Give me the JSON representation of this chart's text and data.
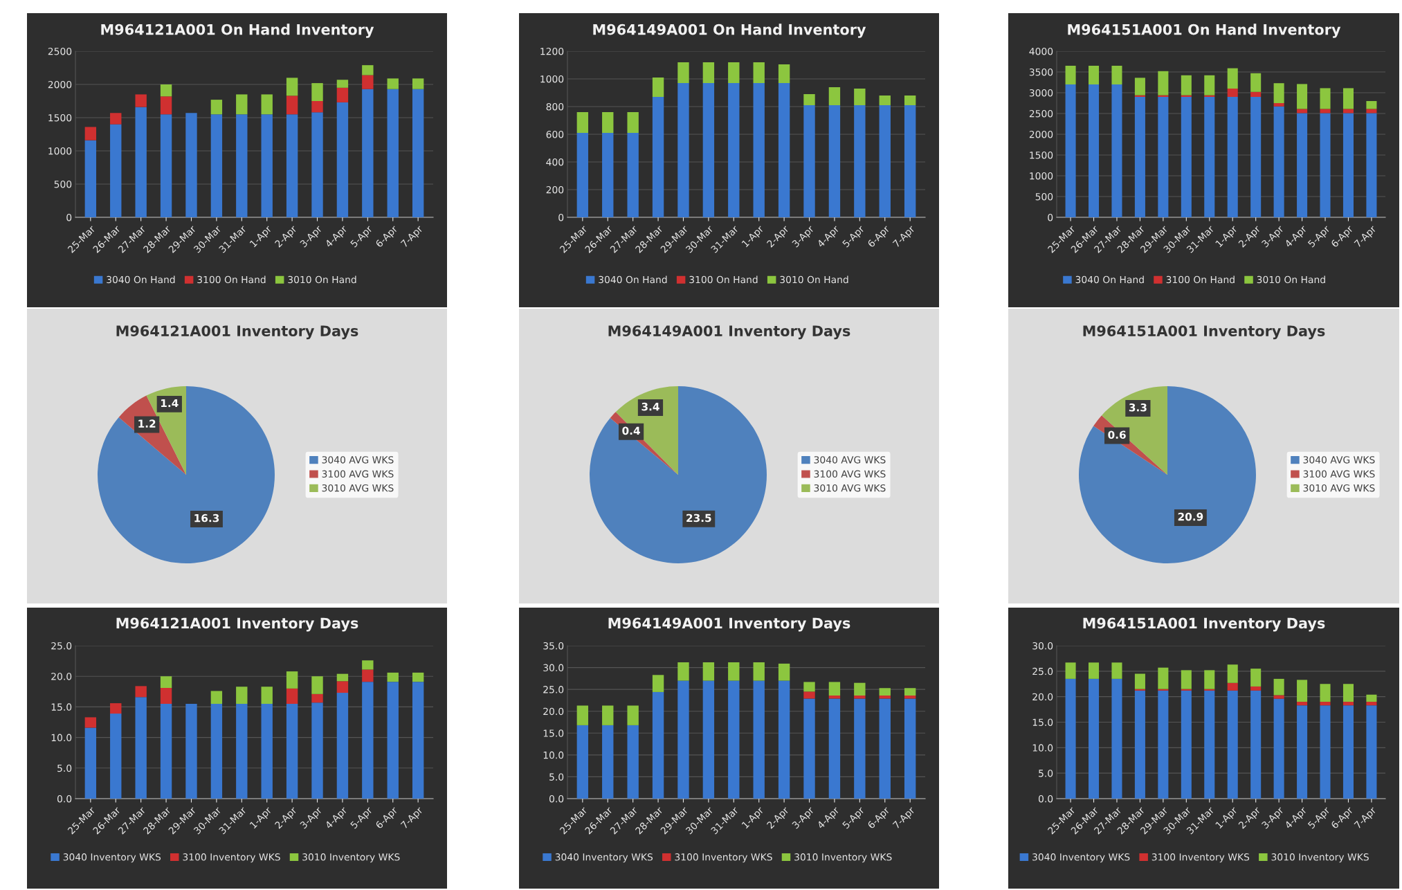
{
  "chart_data": [
    {
      "type": "bar",
      "title": "M964121A001 On Hand Inventory",
      "stacked": true,
      "categories": [
        "25-Mar",
        "26-Mar",
        "27-Mar",
        "28-Mar",
        "29-Mar",
        "30-Mar",
        "31-Mar",
        "1-Apr",
        "2-Apr",
        "3-Apr",
        "4-Apr",
        "5-Apr",
        "6-Apr",
        "7-Apr"
      ],
      "ylim": [
        0,
        2500
      ],
      "yticks": [
        0,
        500,
        1000,
        1500,
        2000,
        2500
      ],
      "grid": "y",
      "legend": "bottom",
      "series": [
        {
          "name": "3040 On Hand",
          "color": "#3a78d0",
          "values": [
            1160,
            1400,
            1660,
            1550,
            1570,
            1550,
            1550,
            1550,
            1550,
            1580,
            1730,
            1930,
            1930,
            1930
          ]
        },
        {
          "name": "3100 On Hand",
          "color": "#d03030",
          "values": [
            200,
            170,
            190,
            270,
            0,
            0,
            0,
            0,
            280,
            170,
            220,
            210,
            0,
            0
          ]
        },
        {
          "name": "3010 On Hand",
          "color": "#8cc63f",
          "values": [
            0,
            0,
            0,
            180,
            0,
            220,
            300,
            300,
            270,
            270,
            120,
            150,
            160,
            160
          ]
        }
      ]
    },
    {
      "type": "bar",
      "title": "M964149A001 On Hand Inventory",
      "stacked": true,
      "categories": [
        "25-Mar",
        "26-Mar",
        "27-Mar",
        "28-Mar",
        "29-Mar",
        "30-Mar",
        "31-Mar",
        "1-Apr",
        "2-Apr",
        "3-Apr",
        "4-Apr",
        "5-Apr",
        "6-Apr",
        "7-Apr"
      ],
      "ylim": [
        0,
        1200
      ],
      "yticks": [
        0,
        200,
        400,
        600,
        800,
        1000,
        1200
      ],
      "grid": "y",
      "legend": "bottom",
      "series": [
        {
          "name": "3040 On Hand",
          "color": "#3a78d0",
          "values": [
            610,
            610,
            610,
            870,
            970,
            970,
            970,
            970,
            970,
            810,
            810,
            810,
            810,
            810
          ]
        },
        {
          "name": "3100 On Hand",
          "color": "#d03030",
          "values": [
            0,
            0,
            0,
            0,
            0,
            0,
            0,
            0,
            0,
            0,
            0,
            0,
            0,
            0
          ]
        },
        {
          "name": "3010 On Hand",
          "color": "#8cc63f",
          "values": [
            150,
            150,
            150,
            140,
            150,
            150,
            150,
            150,
            135,
            80,
            130,
            120,
            70,
            70
          ]
        }
      ]
    },
    {
      "type": "bar",
      "title": "M964151A001 On Hand Inventory",
      "stacked": true,
      "categories": [
        "25-Mar",
        "26-Mar",
        "27-Mar",
        "28-Mar",
        "29-Mar",
        "30-Mar",
        "31-Mar",
        "1-Apr",
        "2-Apr",
        "3-Apr",
        "4-Apr",
        "5-Apr",
        "6-Apr",
        "7-Apr"
      ],
      "ylim": [
        0,
        4000
      ],
      "yticks": [
        0,
        500,
        1000,
        1500,
        2000,
        2500,
        3000,
        3500,
        4000
      ],
      "grid": "y",
      "legend": "bottom",
      "series": [
        {
          "name": "3040 On Hand",
          "color": "#3a78d0",
          "values": [
            3200,
            3200,
            3200,
            2900,
            2900,
            2900,
            2900,
            2900,
            2900,
            2670,
            2510,
            2510,
            2510,
            2510
          ]
        },
        {
          "name": "3100 On Hand",
          "color": "#d03030",
          "values": [
            0,
            0,
            0,
            40,
            40,
            40,
            40,
            200,
            120,
            80,
            100,
            100,
            100,
            100
          ]
        },
        {
          "name": "3010 On Hand",
          "color": "#8cc63f",
          "values": [
            450,
            450,
            450,
            420,
            580,
            480,
            480,
            490,
            450,
            480,
            600,
            500,
            500,
            190
          ]
        }
      ]
    },
    {
      "type": "pie",
      "title": "M964121A001 Inventory Days",
      "categories": [
        "3040 AVG WKS",
        "3100 AVG WKS",
        "3010 AVG WKS"
      ],
      "values": [
        16.3,
        1.2,
        1.4
      ],
      "colors": [
        "#4f81bd",
        "#c0504d",
        "#9bbb59"
      ],
      "data_labels": true,
      "legend": "right"
    },
    {
      "type": "pie",
      "title": "M964149A001 Inventory Days",
      "categories": [
        "3040 AVG WKS",
        "3100 AVG WKS",
        "3010 AVG WKS"
      ],
      "values": [
        23.5,
        0.4,
        3.4
      ],
      "colors": [
        "#4f81bd",
        "#c0504d",
        "#9bbb59"
      ],
      "data_labels": true,
      "legend": "right"
    },
    {
      "type": "pie",
      "title": "M964151A001 Inventory Days",
      "categories": [
        "3040 AVG WKS",
        "3100 AVG WKS",
        "3010 AVG WKS"
      ],
      "values": [
        20.9,
        0.6,
        3.3
      ],
      "colors": [
        "#4f81bd",
        "#c0504d",
        "#9bbb59"
      ],
      "data_labels": true,
      "legend": "right"
    },
    {
      "type": "bar",
      "title": "M964121A001 Inventory Days",
      "stacked": true,
      "categories": [
        "25-Mar",
        "26-Mar",
        "27-Mar",
        "28-Mar",
        "29-Mar",
        "30-Mar",
        "31-Mar",
        "1-Apr",
        "2-Apr",
        "3-Apr",
        "4-Apr",
        "5-Apr",
        "6-Apr",
        "7-Apr"
      ],
      "ylim": [
        0,
        25
      ],
      "yticks": [
        {
          "value": 0,
          "label": "0.0"
        },
        {
          "value": 5,
          "label": "5.0"
        },
        {
          "value": 10,
          "label": "10.0"
        },
        {
          "value": 15,
          "label": "15.0"
        },
        {
          "value": 20,
          "label": "20.0"
        },
        {
          "value": 25,
          "label": "25.0"
        }
      ],
      "grid": "y",
      "legend": "bottom",
      "series": [
        {
          "name": "3040 Inventory WKS",
          "color": "#3a78d0",
          "values": [
            11.6,
            13.9,
            16.6,
            15.5,
            15.5,
            15.5,
            15.5,
            15.5,
            15.5,
            15.7,
            17.3,
            19.1,
            19.1,
            19.1
          ]
        },
        {
          "name": "3100 Inventory WKS",
          "color": "#d03030",
          "values": [
            1.7,
            1.7,
            1.8,
            2.6,
            0,
            0,
            0,
            0,
            2.5,
            1.4,
            1.9,
            2.0,
            0,
            0
          ]
        },
        {
          "name": "3010 Inventory WKS",
          "color": "#8cc63f",
          "values": [
            0,
            0,
            0,
            1.9,
            0,
            2.1,
            2.8,
            2.8,
            2.8,
            2.9,
            1.2,
            1.5,
            1.5,
            1.5
          ]
        }
      ]
    },
    {
      "type": "bar",
      "title": "M964149A001 Inventory Days",
      "stacked": true,
      "categories": [
        "25-Mar",
        "26-Mar",
        "27-Mar",
        "28-Mar",
        "29-Mar",
        "30-Mar",
        "31-Mar",
        "1-Apr",
        "2-Apr",
        "3-Apr",
        "4-Apr",
        "5-Apr",
        "6-Apr",
        "7-Apr"
      ],
      "ylim": [
        0,
        35
      ],
      "yticks": [
        {
          "value": 0,
          "label": "0.0"
        },
        {
          "value": 5,
          "label": "5.0"
        },
        {
          "value": 10,
          "label": "10.0"
        },
        {
          "value": 15,
          "label": "15.0"
        },
        {
          "value": 20,
          "label": "20.0"
        },
        {
          "value": 25,
          "label": "25.0"
        },
        {
          "value": 30,
          "label": "30.0"
        },
        {
          "value": 35,
          "label": "35.0"
        }
      ],
      "grid": "y",
      "legend": "bottom",
      "series": [
        {
          "name": "3040 Inventory WKS",
          "color": "#3a78d0",
          "values": [
            16.8,
            16.8,
            16.8,
            24.4,
            27.0,
            27.0,
            27.0,
            27.0,
            27.0,
            22.9,
            22.9,
            22.9,
            22.9,
            22.9
          ]
        },
        {
          "name": "3100 Inventory WKS",
          "color": "#d03030",
          "values": [
            0,
            0,
            0,
            0,
            0,
            0,
            0,
            0,
            0,
            1.6,
            0.7,
            0.7,
            0.7,
            0.7
          ]
        },
        {
          "name": "3010 Inventory WKS",
          "color": "#8cc63f",
          "values": [
            4.5,
            4.5,
            4.5,
            3.9,
            4.2,
            4.2,
            4.2,
            4.2,
            3.9,
            2.2,
            3.1,
            2.9,
            1.7,
            1.7
          ]
        }
      ]
    },
    {
      "type": "bar",
      "title": "M964151A001 Inventory Days",
      "stacked": true,
      "categories": [
        "25-Mar",
        "26-Mar",
        "27-Mar",
        "28-Mar",
        "29-Mar",
        "30-Mar",
        "31-Mar",
        "1-Apr",
        "2-Apr",
        "3-Apr",
        "4-Apr",
        "5-Apr",
        "6-Apr",
        "7-Apr"
      ],
      "ylim": [
        0,
        30
      ],
      "yticks": [
        {
          "value": 0,
          "label": "0.0"
        },
        {
          "value": 5,
          "label": "5.0"
        },
        {
          "value": 10,
          "label": "10.0"
        },
        {
          "value": 15,
          "label": "15.0"
        },
        {
          "value": 20,
          "label": "20.0"
        },
        {
          "value": 25,
          "label": "25.0"
        },
        {
          "value": 30,
          "label": "30.0"
        }
      ],
      "grid": "y",
      "legend": "bottom",
      "series": [
        {
          "name": "3040 Inventory WKS",
          "color": "#3a78d0",
          "values": [
            23.5,
            23.5,
            23.5,
            21.2,
            21.2,
            21.2,
            21.2,
            21.2,
            21.2,
            19.6,
            18.3,
            18.3,
            18.3,
            18.3
          ]
        },
        {
          "name": "3100 Inventory WKS",
          "color": "#d03030",
          "values": [
            0,
            0,
            0,
            0.3,
            0.3,
            0.3,
            0.3,
            1.5,
            0.8,
            0.7,
            0.7,
            0.7,
            0.7,
            0.7
          ]
        },
        {
          "name": "3010 Inventory WKS",
          "color": "#8cc63f",
          "values": [
            3.2,
            3.2,
            3.2,
            3.0,
            4.2,
            3.7,
            3.7,
            3.6,
            3.5,
            3.2,
            4.3,
            3.5,
            3.5,
            1.4
          ]
        }
      ]
    }
  ]
}
